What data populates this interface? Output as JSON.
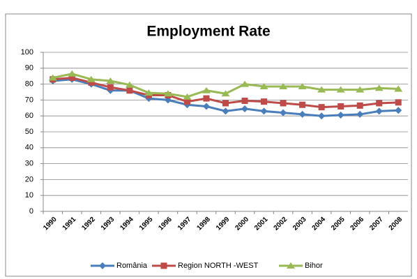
{
  "chart_data": {
    "type": "line",
    "title": "Employment Rate",
    "categories": [
      "1990",
      "1991",
      "1992",
      "1993",
      "1994",
      "1995",
      "1996",
      "1997",
      "1998",
      "1999",
      "2000",
      "2001",
      "2002",
      "2003",
      "2004",
      "2005",
      "2006",
      "2007",
      "2008"
    ],
    "series": [
      {
        "name": "România",
        "color": "#4a7ebb",
        "marker": "diamond",
        "values": [
          82,
          83,
          80,
          76,
          76,
          71,
          70,
          67,
          66,
          63,
          64.5,
          63,
          62,
          61,
          60,
          60.5,
          61,
          63,
          63.5
        ]
      },
      {
        "name": "Region NORTH -WEST",
        "color": "#be4b48",
        "marker": "square",
        "values": [
          83,
          84,
          81,
          78,
          76,
          73,
          73,
          69,
          71,
          68,
          69.5,
          69,
          68,
          67,
          65.5,
          66,
          66.5,
          68,
          68.5
        ]
      },
      {
        "name": "Bihor",
        "color": "#98b954",
        "marker": "triangle",
        "values": [
          84,
          86.5,
          83,
          82,
          79.5,
          74.5,
          74,
          72,
          76,
          74,
          80,
          78.5,
          78.5,
          78.5,
          76.5,
          76.5,
          76.5,
          77.5,
          77
        ]
      }
    ],
    "ylim": [
      0,
      100
    ],
    "yticks": [
      0,
      10,
      20,
      30,
      40,
      50,
      60,
      70,
      80,
      90,
      100
    ],
    "grid": true,
    "legend": "bottom"
  }
}
